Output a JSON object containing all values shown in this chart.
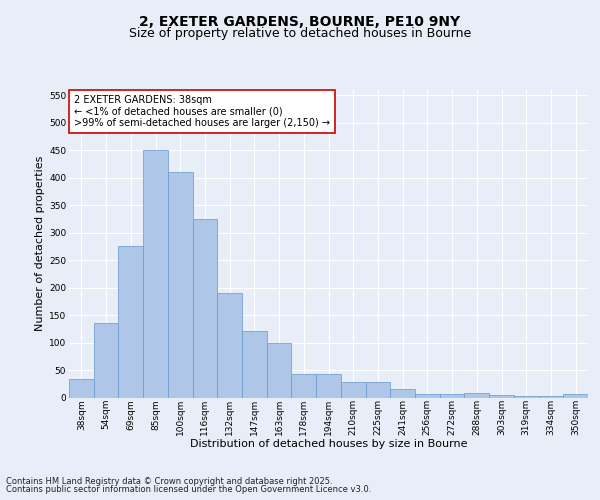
{
  "title_line1": "2, EXETER GARDENS, BOURNE, PE10 9NY",
  "title_line2": "Size of property relative to detached houses in Bourne",
  "xlabel": "Distribution of detached houses by size in Bourne",
  "ylabel": "Number of detached properties",
  "categories": [
    "38sqm",
    "54sqm",
    "69sqm",
    "85sqm",
    "100sqm",
    "116sqm",
    "132sqm",
    "147sqm",
    "163sqm",
    "178sqm",
    "194sqm",
    "210sqm",
    "225sqm",
    "241sqm",
    "256sqm",
    "272sqm",
    "288sqm",
    "303sqm",
    "319sqm",
    "334sqm",
    "350sqm"
  ],
  "values": [
    33,
    135,
    275,
    450,
    410,
    325,
    190,
    122,
    100,
    43,
    43,
    28,
    28,
    15,
    7,
    7,
    9,
    4,
    3,
    3,
    6
  ],
  "bar_color": "#aec6e8",
  "bar_edge_color": "#6699cc",
  "annotation_text": "2 EXETER GARDENS: 38sqm\n← <1% of detached houses are smaller (0)\n>99% of semi-detached houses are larger (2,150) →",
  "annotation_box_color": "#cc0000",
  "ylim": [
    0,
    560
  ],
  "yticks": [
    0,
    50,
    100,
    150,
    200,
    250,
    300,
    350,
    400,
    450,
    500,
    550
  ],
  "background_color": "#e8eef8",
  "plot_bg_color": "#e8eef8",
  "grid_color": "#ffffff",
  "footer_line1": "Contains HM Land Registry data © Crown copyright and database right 2025.",
  "footer_line2": "Contains public sector information licensed under the Open Government Licence v3.0.",
  "title_fontsize": 10,
  "subtitle_fontsize": 9,
  "label_fontsize": 8,
  "tick_fontsize": 6.5,
  "annotation_fontsize": 7,
  "footer_fontsize": 6
}
